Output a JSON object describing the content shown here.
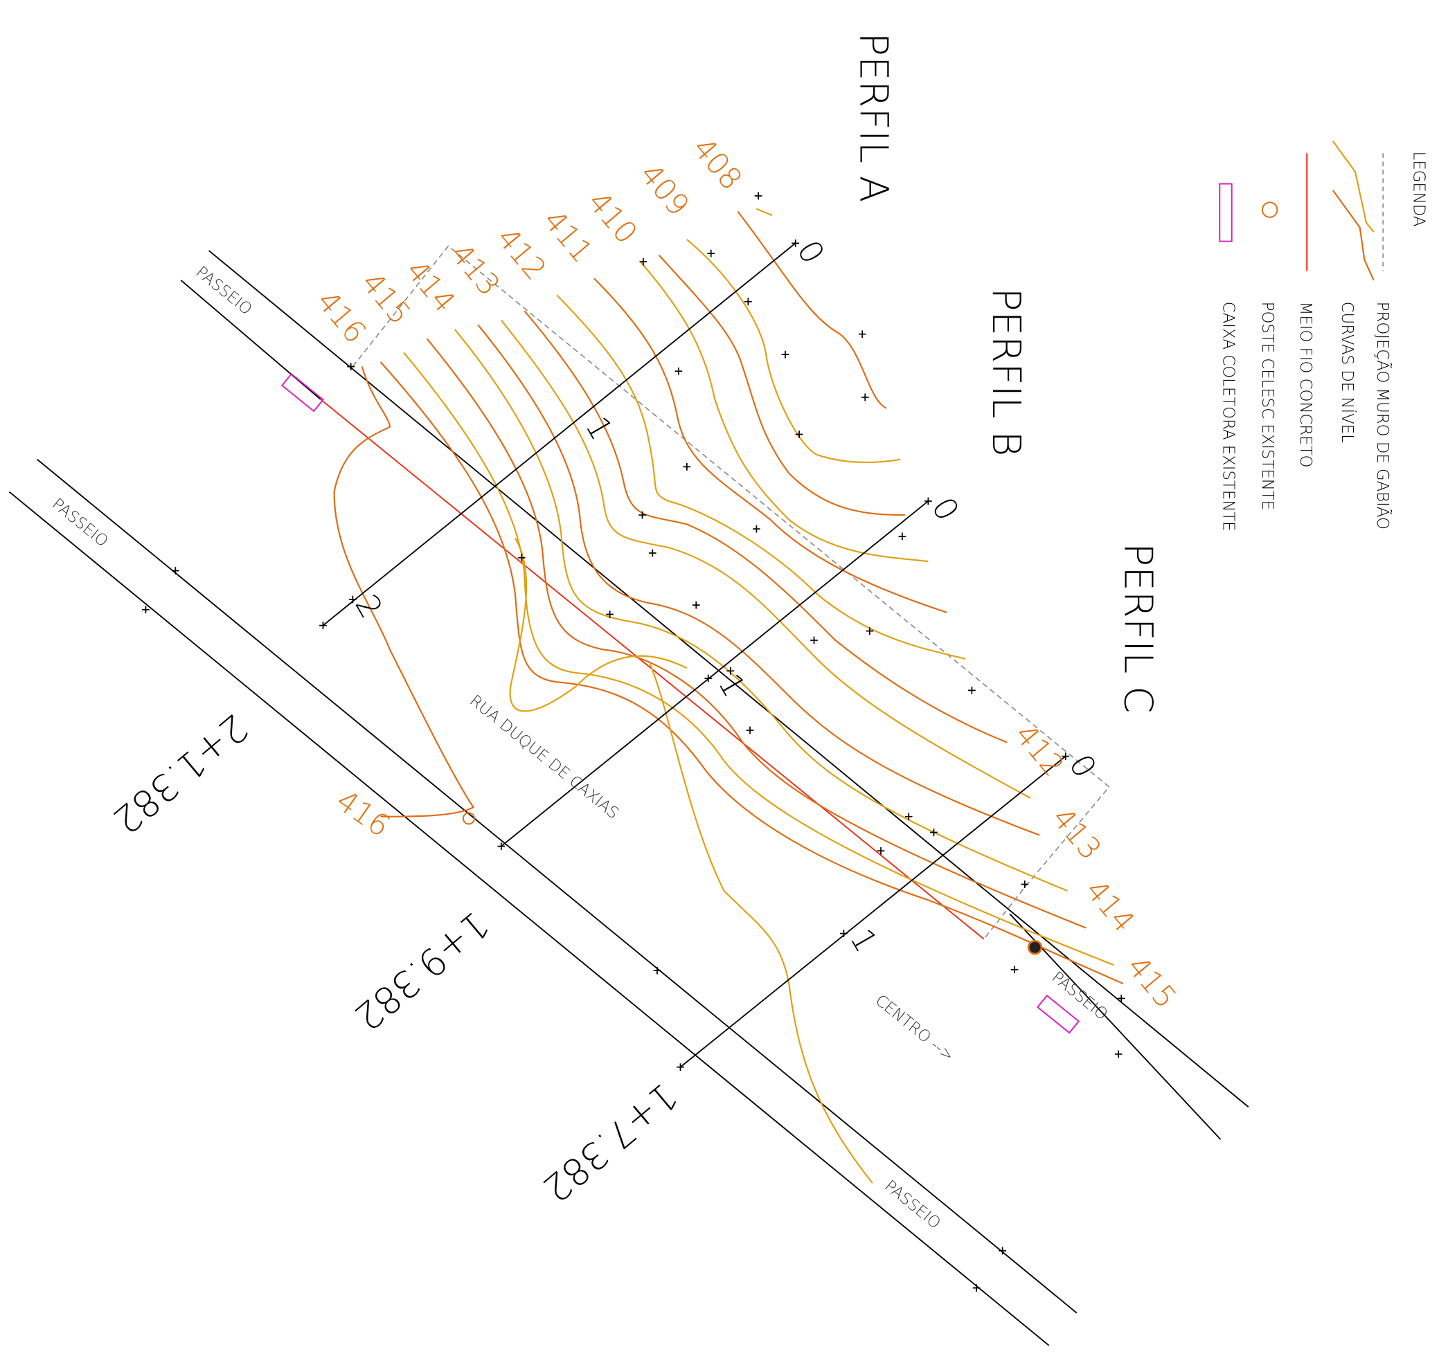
{
  "legend": {
    "title": "LEGENDA",
    "items": [
      "PROJEÇÃO MURO DE GABIÃO",
      "CURVAS DE NÍVEL",
      "MEIO FIO CONCRETO",
      "POSTE CELESC EXISTENTE",
      "CAIXA COLETORA EXISTENTE"
    ]
  },
  "profiles": [
    {
      "label": "PERFIL A",
      "ticks": [
        "0",
        "1",
        "2"
      ]
    },
    {
      "label": "PERFIL B",
      "ticks": [
        "0",
        "1"
      ]
    },
    {
      "label": "PERFIL C",
      "ticks": [
        "0",
        "1"
      ]
    }
  ],
  "sidewalks": [
    "PASSEIO",
    "PASSEIO",
    "PASSEIO",
    "PASSEIO"
  ],
  "street": "RUA DUQUE DE CAXIAS",
  "direction": "CENTRO -->",
  "stations": [
    "2+1.382",
    "1+9.382",
    "1+7.382"
  ],
  "contour_labels_top": [
    "408",
    "409",
    "410",
    "411",
    "412",
    "413",
    "414",
    "415",
    "416"
  ],
  "contour_labels_right": [
    "412",
    "413",
    "414",
    "415"
  ],
  "contour_label_left": "416"
}
